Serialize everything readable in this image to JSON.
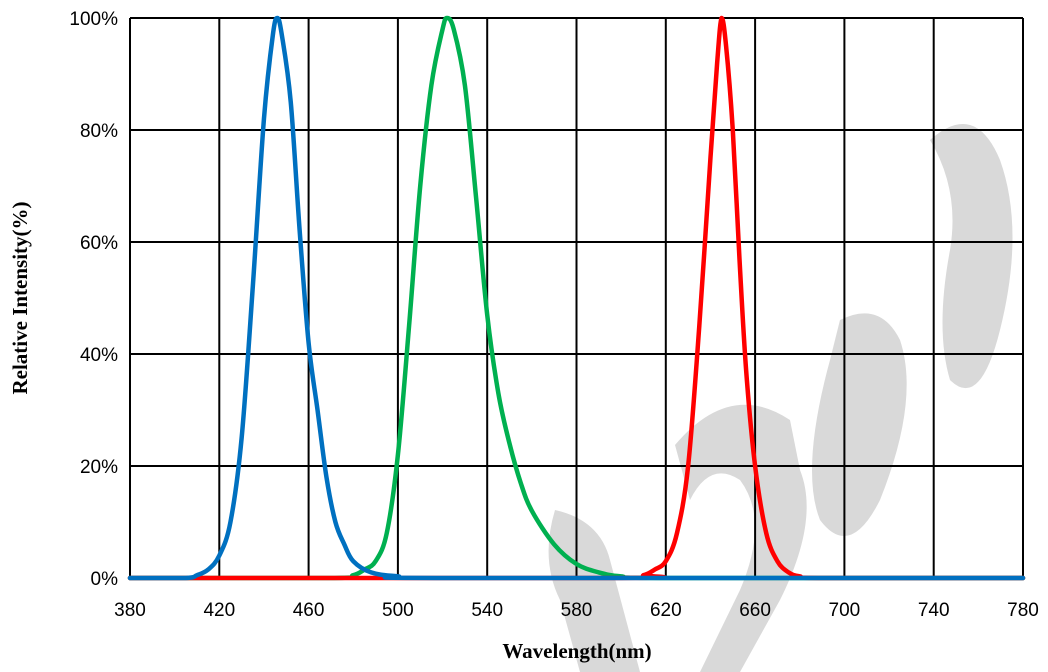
{
  "chart_data": {
    "type": "line",
    "xlabel": "Wavelength(nm)",
    "ylabel": "Relative Intensity(%)",
    "xlim": [
      380,
      780
    ],
    "ylim": [
      0,
      100
    ],
    "x_ticks": [
      "380",
      "420",
      "460",
      "500",
      "540",
      "580",
      "620",
      "660",
      "700",
      "740",
      "780"
    ],
    "y_ticks": [
      "0%",
      "20%",
      "40%",
      "60%",
      "80%",
      "100%"
    ],
    "grid": true,
    "series": [
      {
        "color": "#0070c0",
        "points": [
          [
            380,
            0
          ],
          [
            405,
            0
          ],
          [
            410,
            0.5
          ],
          [
            415,
            1.5
          ],
          [
            420,
            4
          ],
          [
            425,
            10
          ],
          [
            430,
            25
          ],
          [
            435,
            52
          ],
          [
            440,
            82
          ],
          [
            444,
            97
          ],
          [
            446,
            100
          ],
          [
            448,
            97
          ],
          [
            452,
            85
          ],
          [
            456,
            62
          ],
          [
            460,
            42
          ],
          [
            464,
            30
          ],
          [
            468,
            18
          ],
          [
            472,
            10
          ],
          [
            476,
            6
          ],
          [
            480,
            3
          ],
          [
            488,
            1
          ],
          [
            500,
            0.3
          ],
          [
            520,
            0
          ],
          [
            780,
            0
          ]
        ]
      },
      {
        "color": "#00b050",
        "points": [
          [
            380,
            0
          ],
          [
            470,
            0
          ],
          [
            480,
            0.5
          ],
          [
            485,
            1.5
          ],
          [
            490,
            3
          ],
          [
            495,
            8
          ],
          [
            500,
            22
          ],
          [
            505,
            45
          ],
          [
            510,
            70
          ],
          [
            515,
            88
          ],
          [
            520,
            98
          ],
          [
            522,
            100
          ],
          [
            525,
            98
          ],
          [
            530,
            88
          ],
          [
            535,
            68
          ],
          [
            540,
            47
          ],
          [
            545,
            33
          ],
          [
            550,
            24
          ],
          [
            555,
            17
          ],
          [
            560,
            12
          ],
          [
            570,
            6
          ],
          [
            580,
            2.5
          ],
          [
            590,
            1
          ],
          [
            600,
            0.3
          ],
          [
            620,
            0
          ],
          [
            780,
            0
          ]
        ]
      },
      {
        "color": "#ff0000",
        "points": [
          [
            380,
            0
          ],
          [
            600,
            0
          ],
          [
            610,
            0.5
          ],
          [
            615,
            1.5
          ],
          [
            620,
            3
          ],
          [
            625,
            8
          ],
          [
            630,
            20
          ],
          [
            635,
            45
          ],
          [
            640,
            75
          ],
          [
            643,
            92
          ],
          [
            645,
            100
          ],
          [
            647,
            95
          ],
          [
            650,
            80
          ],
          [
            653,
            57
          ],
          [
            656,
            37
          ],
          [
            660,
            20
          ],
          [
            665,
            8
          ],
          [
            670,
            3
          ],
          [
            675,
            1
          ],
          [
            680,
            0.3
          ],
          [
            690,
            0
          ],
          [
            780,
            0
          ]
        ]
      }
    ]
  }
}
